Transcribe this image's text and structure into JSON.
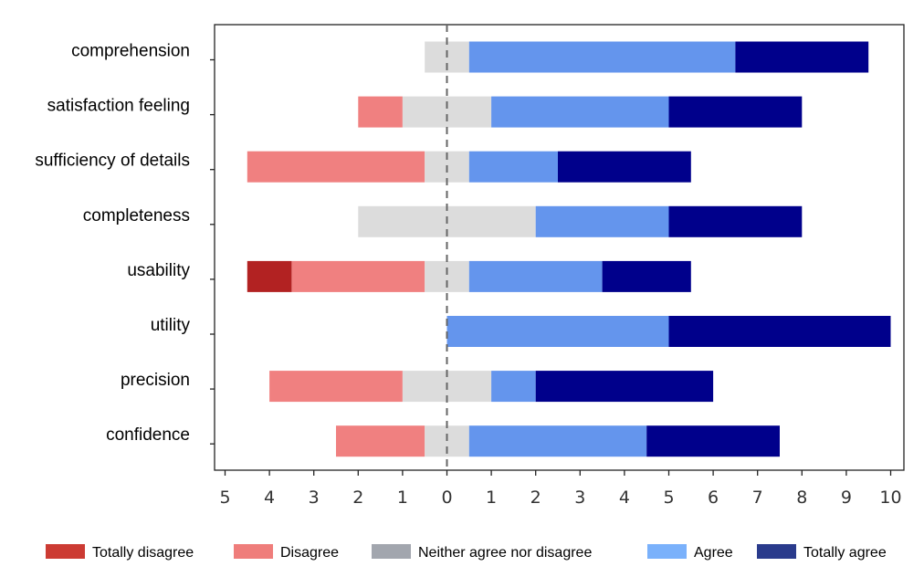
{
  "chart_data": {
    "type": "bar",
    "orientation": "horizontal-diverging",
    "categories": [
      "comprehension",
      "satisfaction feeling",
      "sufficiency of details",
      "completeness",
      "usability",
      "utility",
      "precision",
      "confidence"
    ],
    "x_ticks": [
      "5",
      "4",
      "3",
      "2",
      "1",
      "0",
      "1",
      "2",
      "3",
      "4",
      "5",
      "6",
      "7",
      "8",
      "9",
      "10"
    ],
    "xlim": [
      -5,
      10
    ],
    "center_line": "dashed at 0",
    "series": [
      {
        "name": "Totally disagree",
        "color": "#b22222",
        "legend_color": "#cc3b33",
        "values": [
          0,
          0,
          0,
          0,
          1,
          0,
          0,
          0
        ]
      },
      {
        "name": "Disagree",
        "color": "#f08080",
        "legend_color": "#ef7d7b",
        "values": [
          0,
          1,
          4,
          0,
          3,
          0,
          3,
          2
        ]
      },
      {
        "name": "Neither agree nor disagree",
        "color": "#dcdcdc",
        "legend_color": "#a2a6ae",
        "values": [
          1,
          2,
          1,
          4,
          1,
          0,
          2,
          1
        ]
      },
      {
        "name": "Agree",
        "color": "#6495ed",
        "legend_color": "#7ab1fb",
        "values": [
          6,
          4,
          2,
          3,
          3,
          5,
          1,
          4
        ]
      },
      {
        "name": "Totally agree",
        "color": "#00008b",
        "legend_color": "#2a3b8c",
        "values": [
          3,
          3,
          3,
          3,
          2,
          5,
          4,
          3
        ]
      }
    ],
    "legend_position": "bottom",
    "grid": false
  }
}
